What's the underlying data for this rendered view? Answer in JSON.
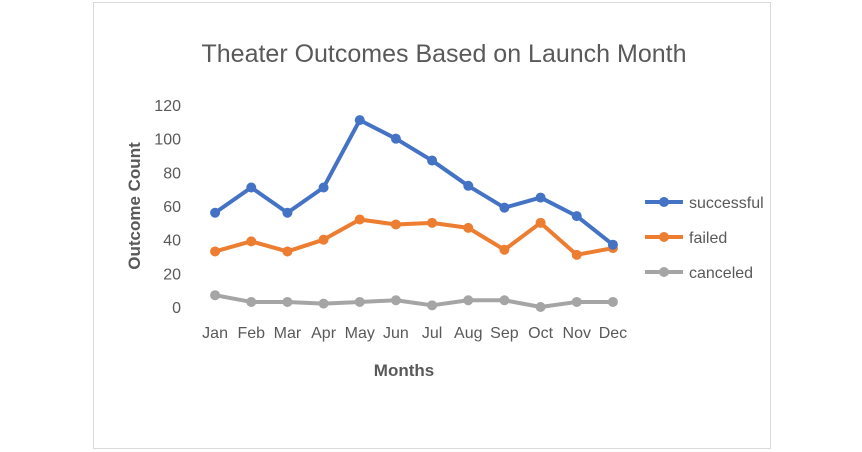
{
  "chart_data": {
    "type": "line",
    "title": "Theater Outcomes Based on Launch Month",
    "xlabel": "Months",
    "ylabel": "Outcome Count",
    "categories": [
      "Jan",
      "Feb",
      "Mar",
      "Apr",
      "May",
      "Jun",
      "Jul",
      "Aug",
      "Sep",
      "Oct",
      "Nov",
      "Dec"
    ],
    "ylim": [
      0,
      120
    ],
    "yticks": [
      "0",
      "20",
      "40",
      "60",
      "80",
      "100",
      "120"
    ],
    "grid": false,
    "legend_position": "right",
    "series": [
      {
        "name": "successful",
        "color": "#4472C4",
        "values": [
          56,
          71,
          56,
          71,
          111,
          100,
          87,
          72,
          59,
          65,
          54,
          37
        ]
      },
      {
        "name": "failed",
        "color": "#ED7D31",
        "values": [
          33,
          39,
          33,
          40,
          52,
          49,
          50,
          47,
          34,
          50,
          31,
          35
        ]
      },
      {
        "name": "canceled",
        "color": "#A5A5A5",
        "values": [
          7,
          3,
          3,
          2,
          3,
          4,
          1,
          4,
          4,
          0,
          3,
          3
        ]
      }
    ]
  }
}
